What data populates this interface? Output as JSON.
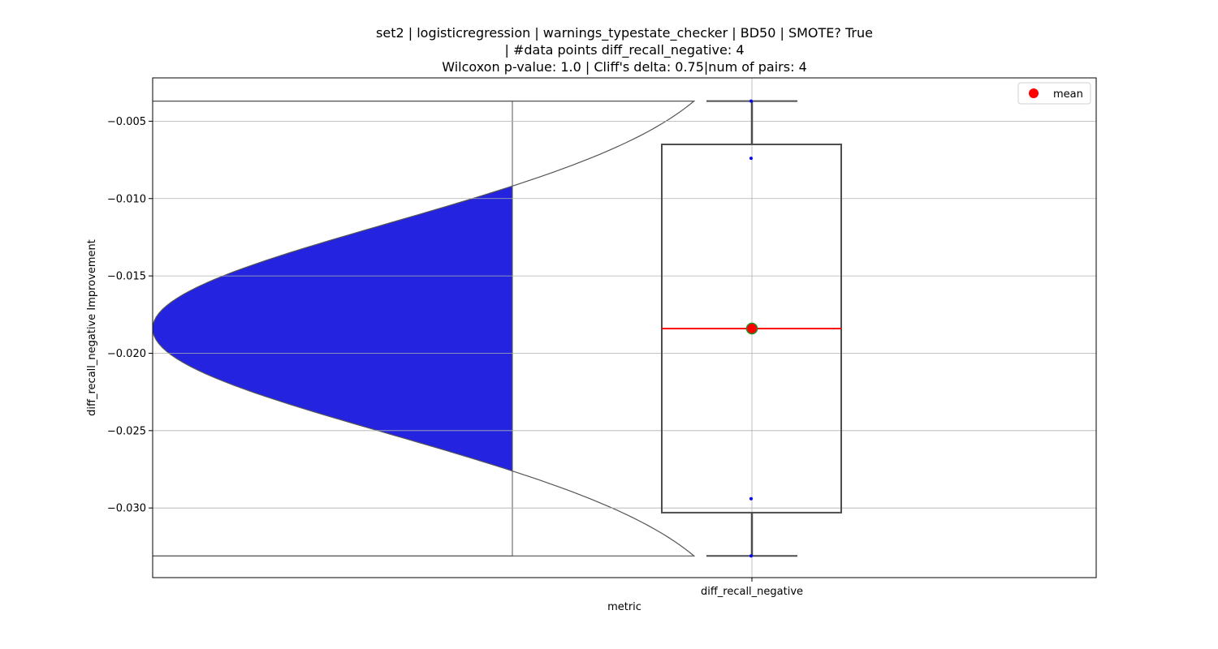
{
  "chart_data": {
    "type": "box",
    "title_lines": [
      "set2 | logisticregression | warnings_typestate_checker | BD50 | SMOTE? True",
      "| #data points diff_recall_negative: 4",
      "Wilcoxon p-value: 1.0 | Cliff's delta: 0.75|num of pairs: 4"
    ],
    "xlabel": "metric",
    "ylabel": "diff_recall_negative Improvement",
    "categories": [
      "diff_recall_negative"
    ],
    "ylim": [
      -0.0345,
      -0.0022
    ],
    "yticks": [
      {
        "value": -0.005,
        "label": "−0.005"
      },
      {
        "value": -0.01,
        "label": "−0.010"
      },
      {
        "value": -0.015,
        "label": "−0.015"
      },
      {
        "value": -0.02,
        "label": "−0.020"
      },
      {
        "value": -0.025,
        "label": "−0.025"
      },
      {
        "value": -0.03,
        "label": "−0.030"
      }
    ],
    "grid": true,
    "box": {
      "whisker_low": -0.0331,
      "q1": -0.0303,
      "median": -0.0184,
      "q3": -0.0065,
      "whisker_high": -0.0037,
      "mean": -0.0184
    },
    "points": [
      -0.0037,
      -0.0074,
      -0.0294,
      -0.0331
    ],
    "violin": {
      "y_min": -0.0331,
      "y_max": -0.0037,
      "center": -0.0184,
      "sigma": 0.0068
    },
    "legend": {
      "position": "top-right",
      "entries": [
        {
          "label": "mean",
          "color": "#ff0000"
        }
      ]
    },
    "colors": {
      "violin_fill": "#2323e0",
      "median_line": "#ff0000",
      "mean_marker": "#ff0000",
      "mean_edge": "#228b22",
      "points": "#0000ff",
      "box_edge": "#4d4d4d",
      "grid": "#b0b0b0"
    }
  }
}
